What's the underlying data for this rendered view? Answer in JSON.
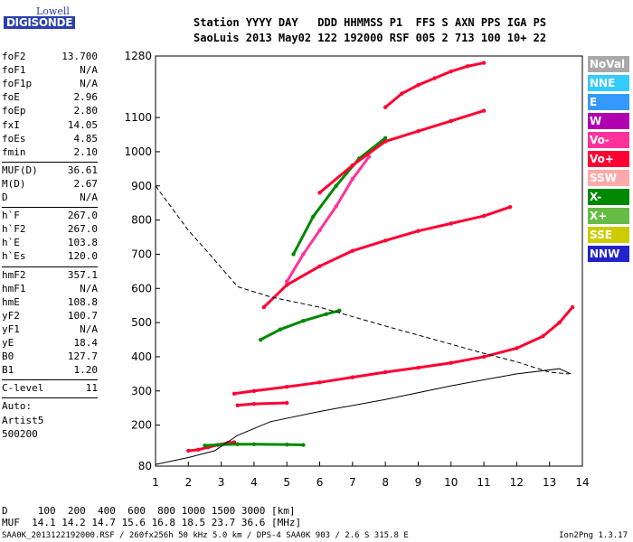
{
  "logo": {
    "line1": "Lowell",
    "line2": "DIGISONDE"
  },
  "header": {
    "line1": "Station YYYY DAY   DDD HHMMSS P1  FFS S AXN PPS IGA PS",
    "line2": "SaoLuis 2013 May02 122 192000 RSF 005 2 713 100 10+ 22"
  },
  "params": [
    {
      "k": "foF2",
      "v": "13.700"
    },
    {
      "k": "foF1",
      "v": "N/A"
    },
    {
      "k": "foF1p",
      "v": "N/A"
    },
    {
      "k": "foE",
      "v": "2.96"
    },
    {
      "k": "foEp",
      "v": "2.80"
    },
    {
      "k": "fxI",
      "v": "14.05"
    },
    {
      "k": "foEs",
      "v": "4.85"
    },
    {
      "k": "fmin",
      "v": "2.10"
    },
    {
      "k": "MUF(D)",
      "v": "36.61"
    },
    {
      "k": "M(D)",
      "v": "2.67"
    },
    {
      "k": "D",
      "v": "N/A"
    },
    {
      "k": "h`F",
      "v": "267.0"
    },
    {
      "k": "h`F2",
      "v": "267.0"
    },
    {
      "k": "h`E",
      "v": "103.8"
    },
    {
      "k": "h`Es",
      "v": "120.0"
    },
    {
      "k": "hmF2",
      "v": "357.1"
    },
    {
      "k": "hmF1",
      "v": "N/A"
    },
    {
      "k": "hmE",
      "v": "108.8"
    },
    {
      "k": "yF2",
      "v": "100.7"
    },
    {
      "k": "yF1",
      "v": "N/A"
    },
    {
      "k": "yE",
      "v": "18.4"
    },
    {
      "k": "B0",
      "v": "127.7"
    },
    {
      "k": "B1",
      "v": "1.20"
    },
    {
      "k": "C-level",
      "v": "11"
    },
    {
      "k": "Auto:",
      "v": ""
    },
    {
      "k": "Artist5",
      "v": ""
    },
    {
      "k": "500200",
      "v": ""
    }
  ],
  "legend": [
    {
      "label": "NoVal",
      "color": "#a9a9a9"
    },
    {
      "label": "NNE",
      "color": "#33ccff"
    },
    {
      "label": "E",
      "color": "#3399ff"
    },
    {
      "label": "W",
      "color": "#b000b0"
    },
    {
      "label": "Vo-",
      "color": "#ff3399"
    },
    {
      "label": "Vo+",
      "color": "#ff0033"
    },
    {
      "label": "SSW",
      "color": "#ffaaaa"
    },
    {
      "label": "X-",
      "color": "#008800"
    },
    {
      "label": "X+",
      "color": "#66bb44"
    },
    {
      "label": "SSE",
      "color": "#cccc00"
    },
    {
      "label": "NNW",
      "color": "#2222cc"
    }
  ],
  "bottom": {
    "d_line": "D     100  200  400  600  800 1000 1500 3000 [km]",
    "muf_line": "MUF  14.1 14.2 14.7 15.6 16.8 18.5 23.7 36.6 [MHz]"
  },
  "footer": {
    "left": "SAA0K_2013122192000.RSF / 260fx256h 50 kHz 5.0 km / DPS-4 SAA0K 903 / 2.6 S 315.8 E",
    "right": "Ion2Png 1.3.17"
  },
  "chart_data": {
    "type": "scatter",
    "xlim": [
      1,
      14
    ],
    "ylim": [
      80,
      1280
    ],
    "x_ticks": [
      1,
      2,
      3,
      4,
      5,
      6,
      7,
      8,
      9,
      10,
      11,
      12,
      13,
      14
    ],
    "y_ticks": [
      80,
      200,
      300,
      400,
      500,
      600,
      700,
      800,
      900,
      1000,
      1100,
      1280
    ],
    "series": [
      {
        "color": "#ff0033",
        "points": [
          [
            2.0,
            125
          ],
          [
            2.3,
            128
          ],
          [
            2.6,
            135
          ],
          [
            2.9,
            142
          ],
          [
            3.2,
            148
          ],
          [
            3.4,
            150
          ]
        ]
      },
      {
        "color": "#ff0033",
        "points": [
          [
            3.4,
            292
          ],
          [
            4,
            300
          ],
          [
            5,
            312
          ],
          [
            6,
            325
          ],
          [
            7,
            340
          ],
          [
            8,
            355
          ],
          [
            9,
            368
          ],
          [
            10,
            382
          ],
          [
            11,
            400
          ],
          [
            12,
            425
          ],
          [
            12.8,
            460
          ],
          [
            13.3,
            500
          ],
          [
            13.7,
            545
          ]
        ]
      },
      {
        "color": "#ff0033",
        "points": [
          [
            3.5,
            258
          ],
          [
            4,
            262
          ],
          [
            5,
            265
          ]
        ]
      },
      {
        "color": "#008800",
        "points": [
          [
            2.5,
            140
          ],
          [
            3,
            143
          ],
          [
            3.5,
            144
          ],
          [
            4,
            144
          ],
          [
            5,
            143
          ],
          [
            5.5,
            142
          ]
        ]
      },
      {
        "color": "#008800",
        "points": [
          [
            4.2,
            450
          ],
          [
            4.8,
            480
          ],
          [
            5.5,
            505
          ],
          [
            6.2,
            525
          ],
          [
            6.6,
            535
          ]
        ]
      },
      {
        "color": "#ff0033",
        "points": [
          [
            4.3,
            545
          ],
          [
            5,
            610
          ],
          [
            6,
            665
          ],
          [
            7,
            710
          ],
          [
            8,
            740
          ],
          [
            9,
            768
          ],
          [
            10,
            790
          ],
          [
            11,
            812
          ],
          [
            11.8,
            838
          ]
        ]
      },
      {
        "color": "#ff3399",
        "points": [
          [
            5,
            620
          ],
          [
            5.5,
            700
          ],
          [
            6,
            770
          ],
          [
            6.5,
            840
          ],
          [
            7,
            920
          ],
          [
            7.5,
            985
          ]
        ]
      },
      {
        "color": "#008800",
        "points": [
          [
            5.2,
            700
          ],
          [
            5.8,
            810
          ],
          [
            6.5,
            900
          ],
          [
            7.2,
            980
          ],
          [
            8,
            1040
          ]
        ]
      },
      {
        "color": "#ff0033",
        "points": [
          [
            6,
            880
          ],
          [
            7,
            960
          ],
          [
            8,
            1030
          ],
          [
            9,
            1060
          ],
          [
            10,
            1090
          ],
          [
            11,
            1120
          ]
        ]
      },
      {
        "color": "#ff0033",
        "points": [
          [
            8,
            1130
          ],
          [
            8.5,
            1170
          ],
          [
            9,
            1195
          ],
          [
            9.5,
            1215
          ],
          [
            10,
            1235
          ],
          [
            10.5,
            1250
          ],
          [
            11,
            1260
          ]
        ]
      }
    ],
    "curves": [
      {
        "style": "dashed",
        "points": [
          [
            1,
            900
          ],
          [
            2,
            770
          ],
          [
            2.6,
            705
          ],
          [
            3.5,
            605
          ],
          [
            4.5,
            575
          ],
          [
            6,
            545
          ],
          [
            8,
            490
          ],
          [
            9.5,
            450
          ],
          [
            11,
            410
          ],
          [
            12,
            385
          ],
          [
            13,
            355
          ],
          [
            13.6,
            350
          ]
        ]
      },
      {
        "style": "solid",
        "points": [
          [
            1,
            85
          ],
          [
            2,
            105
          ],
          [
            2.8,
            125
          ],
          [
            3.5,
            170
          ],
          [
            4.5,
            210
          ],
          [
            6,
            240
          ],
          [
            8,
            275
          ],
          [
            10,
            315
          ],
          [
            12,
            350
          ],
          [
            13.3,
            365
          ],
          [
            13.65,
            350
          ]
        ]
      }
    ]
  }
}
